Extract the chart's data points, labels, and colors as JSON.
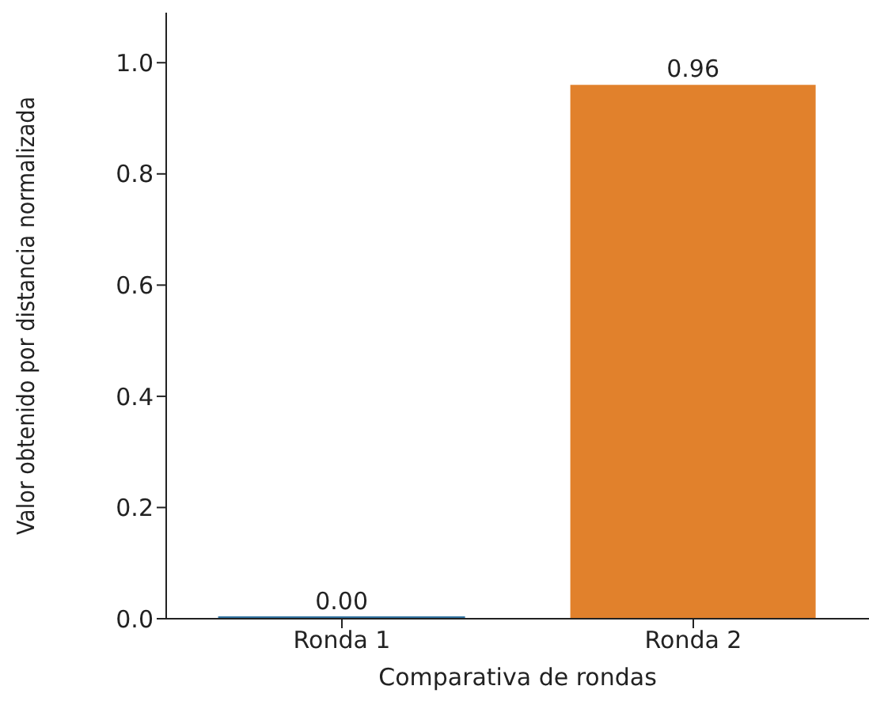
{
  "chart_data": {
    "type": "bar",
    "xlabel": "Comparativa de rondas",
    "ylabel": "Valor obtenido por distancia normalizada",
    "categories": [
      "Ronda 1",
      "Ronda 2"
    ],
    "values": [
      0.0,
      0.96
    ],
    "colors": [
      "#3274a1",
      "#e1812c"
    ],
    "value_labels": [
      "0.00",
      "0.96"
    ],
    "ylim": [
      0,
      1.09
    ],
    "yticks": [
      {
        "value": 0,
        "label": "0.0"
      },
      {
        "value": 0.2,
        "label": "0.2"
      },
      {
        "value": 0.4,
        "label": "0.4"
      },
      {
        "value": 0.6,
        "label": "0.6"
      },
      {
        "value": 0.8,
        "label": "0.8"
      },
      {
        "value": 1.0,
        "label": "1.0"
      }
    ],
    "grid": false,
    "legend": false
  }
}
